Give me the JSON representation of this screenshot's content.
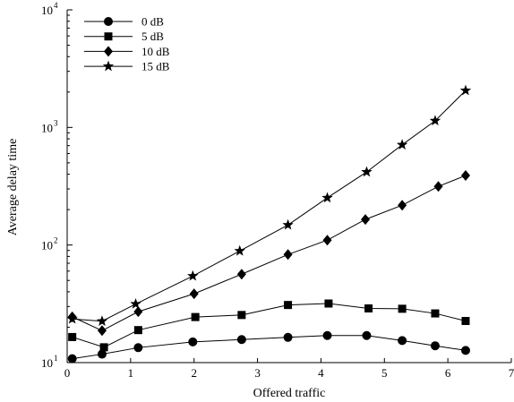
{
  "chart_data": {
    "type": "line",
    "title": "",
    "xlabel": "Offered traffic",
    "ylabel": "Average delay time",
    "xlim": [
      0,
      7
    ],
    "ylim": [
      10,
      10000
    ],
    "yscale": "log",
    "grid": false,
    "legend_position": "top-left",
    "x_ticks": [
      "0",
      "1",
      "2",
      "3",
      "4",
      "5",
      "6",
      "7"
    ],
    "y_ticks": [
      {
        "value": 10,
        "base": "10",
        "exp": "1"
      },
      {
        "value": 100,
        "base": "10",
        "exp": "2"
      },
      {
        "value": 1000,
        "base": "10",
        "exp": "3"
      },
      {
        "value": 10000,
        "base": "10",
        "exp": "4"
      }
    ],
    "series": [
      {
        "name": "0 dB",
        "marker": "circle",
        "x": [
          0.08,
          0.55,
          1.12,
          1.98,
          2.75,
          3.48,
          4.1,
          4.72,
          5.28,
          5.8,
          6.28
        ],
        "y": [
          10.8,
          11.8,
          13.4,
          15.0,
          15.7,
          16.4,
          17.0,
          17.0,
          15.4,
          13.9,
          12.7
        ]
      },
      {
        "name": "5 dB",
        "marker": "square",
        "x": [
          0.08,
          0.58,
          1.12,
          2.02,
          2.75,
          3.48,
          4.12,
          4.75,
          5.28,
          5.8,
          6.28
        ],
        "y": [
          16.5,
          13.5,
          18.9,
          24.4,
          25.4,
          30.9,
          31.8,
          28.9,
          28.7,
          26.2,
          22.6
        ]
      },
      {
        "name": "10 dB",
        "marker": "diamond",
        "x": [
          0.08,
          0.55,
          1.12,
          2.0,
          2.75,
          3.48,
          4.1,
          4.7,
          5.28,
          5.85,
          6.28
        ],
        "y": [
          24.5,
          18.7,
          27.1,
          38.5,
          56.5,
          83.0,
          110.0,
          165.0,
          218.0,
          315.0,
          390.0
        ]
      },
      {
        "name": "15 dB",
        "marker": "star",
        "x": [
          0.08,
          0.55,
          1.08,
          1.98,
          2.72,
          3.48,
          4.1,
          4.72,
          5.28,
          5.8,
          6.28
        ],
        "y": [
          23.5,
          22.5,
          31.5,
          54.5,
          89.0,
          148.0,
          252.0,
          418.0,
          712.0,
          1140.0,
          2060.0
        ]
      }
    ]
  }
}
